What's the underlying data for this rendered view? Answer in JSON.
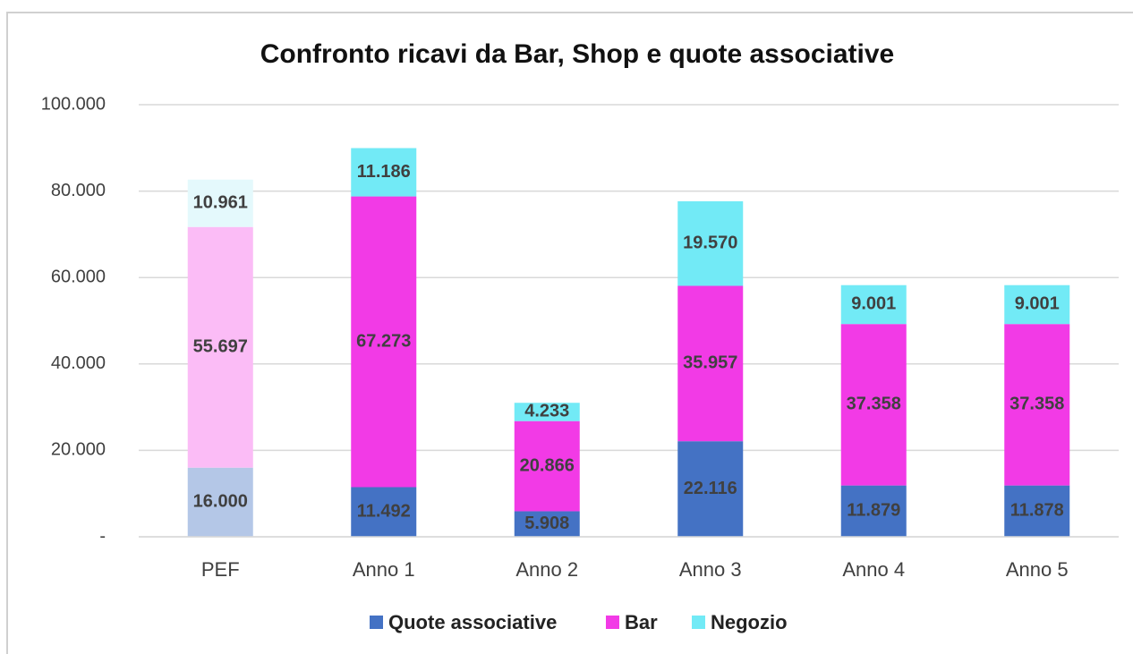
{
  "chart_data": {
    "type": "stacked_bar",
    "title": "Confronto ricavi da Bar, Shop e quote associative",
    "categories": [
      "PEF",
      "Anno 1",
      "Anno 2",
      "Anno 3",
      "Anno 4",
      "Anno 5"
    ],
    "series": [
      {
        "name": "Quote associative",
        "color": "#4472c4",
        "colors": [
          "#b4c7e7",
          "#4472c4",
          "#4472c4",
          "#4472c4",
          "#4472c4",
          "#4472c4"
        ],
        "values": [
          16000,
          11492,
          5908,
          22116,
          11879,
          11878
        ],
        "value_labels": [
          "16.000",
          "11.492",
          "5.908",
          "22.116",
          "11.879",
          "11.878"
        ]
      },
      {
        "name": "Bar",
        "color": "#f23ae6",
        "colors": [
          "#fbbcf6",
          "#f23ae6",
          "#f23ae6",
          "#f23ae6",
          "#f23ae6",
          "#f23ae6"
        ],
        "values": [
          55697,
          67273,
          20866,
          35957,
          37358,
          37358
        ],
        "value_labels": [
          "55.697",
          "67.273",
          "20.866",
          "35.957",
          "37.358",
          "37.358"
        ]
      },
      {
        "name": "Negozio",
        "color": "#72eaf6",
        "colors": [
          "#e4f9fc",
          "#72eaf6",
          "#72eaf6",
          "#72eaf6",
          "#72eaf6",
          "#72eaf6"
        ],
        "values": [
          10961,
          11186,
          4233,
          19570,
          9001,
          9001
        ],
        "value_labels": [
          "10.961",
          "11.186",
          "4.233",
          "19.570",
          "9.001",
          "9.001"
        ]
      }
    ],
    "ylim": [
      0,
      100000
    ],
    "yticks": [
      {
        "value": 0,
        "label": "-"
      },
      {
        "value": 20000,
        "label": "20.000"
      },
      {
        "value": 40000,
        "label": "40.000"
      },
      {
        "value": 60000,
        "label": "60.000"
      },
      {
        "value": 80000,
        "label": "80.000"
      },
      {
        "value": 100000,
        "label": "100.000"
      }
    ],
    "grid": true,
    "legend": "bottom"
  }
}
